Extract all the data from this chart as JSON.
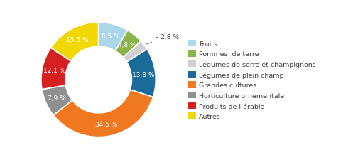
{
  "labels": [
    "Fruits",
    "Pommes de terre",
    "Légumes de serre et champignons",
    "Légumes de plein champ",
    "Grandes cultures",
    "Horticulture ornementale",
    "Produits de l’érable",
    "Autres"
  ],
  "values": [
    8.5,
    4.8,
    2.8,
    13.8,
    34.5,
    7.9,
    12.1,
    15.6
  ],
  "colors": [
    "#a8d8ea",
    "#8ab44a",
    "#d0d0d0",
    "#1a6b9a",
    "#f07820",
    "#909090",
    "#d42020",
    "#f0d800"
  ],
  "pct_labels": [
    "8,5 %",
    "4,8 %",
    "– 2,8 %",
    "13,8 %",
    "34,5 %",
    "7,9 %",
    "12,1 %",
    "15,6 %"
  ],
  "legend_labels": [
    "Fruits",
    "Pommes  de terre",
    "Légumes de serre et champignons",
    "Légumes de plein champ",
    "Grandes cultures",
    "Horticulture ornementale",
    "Produits de l’érable",
    "Autres"
  ],
  "background_color": "#ffffff",
  "text_color": "#404040",
  "wedge_edge_color": "#ffffff",
  "donut_width": 0.42
}
